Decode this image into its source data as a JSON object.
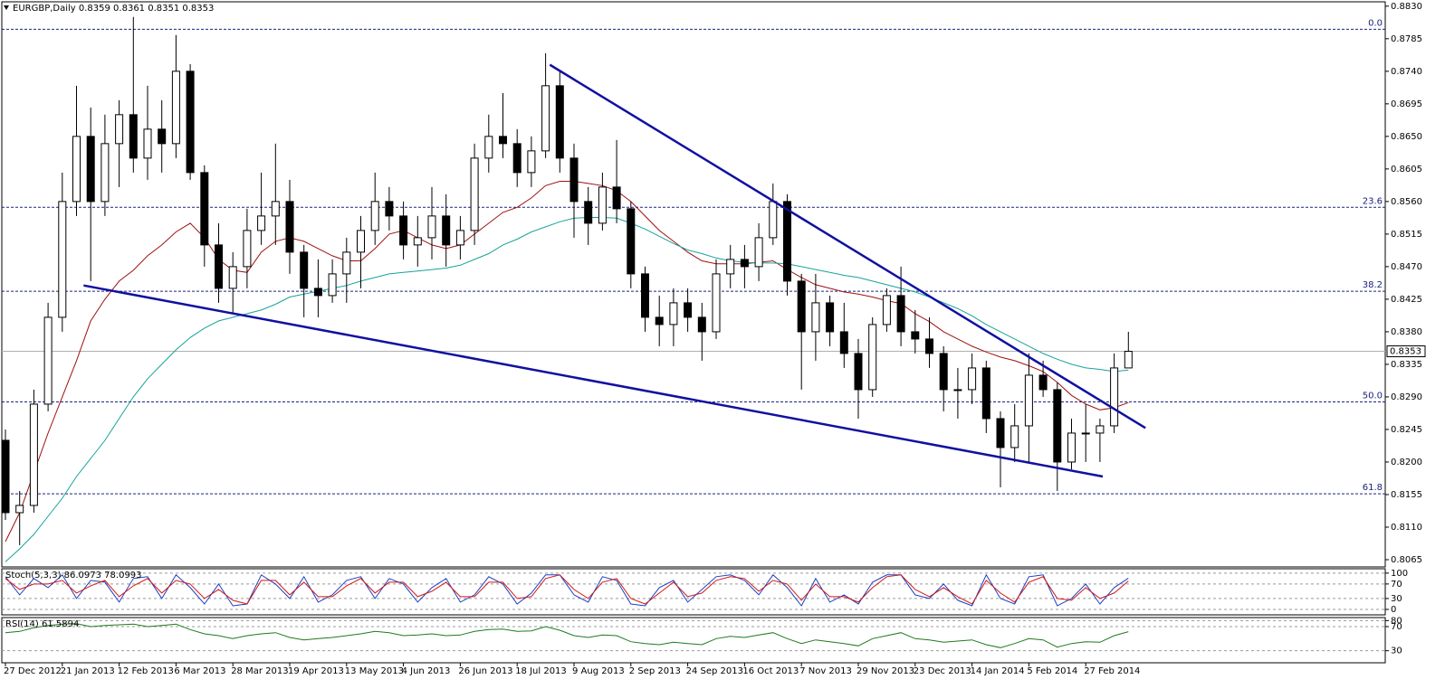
{
  "chart_data": [
    {
      "type": "candlestick",
      "title": "EURGBP,Daily 0.8359 0.8361 0.8351 0.8353",
      "categories": [
        "27 Dec 2012",
        null,
        null,
        null,
        "21 Jan 2013",
        null,
        null,
        null,
        "12 Feb 2013",
        null,
        null,
        null,
        "6 Mar 2013",
        null,
        null,
        null,
        "28 Mar 2013",
        null,
        null,
        null,
        "19 Apr 2013",
        null,
        null,
        null,
        "13 May 2013",
        null,
        null,
        null,
        "4 Jun 2013",
        null,
        null,
        null,
        "26 Jun 2013",
        null,
        null,
        null,
        "18 Jul 2013",
        null,
        null,
        null,
        "9 Aug 2013",
        null,
        null,
        null,
        "2 Sep 2013",
        null,
        null,
        null,
        "24 Sep 2013",
        null,
        null,
        null,
        "16 Oct 2013",
        null,
        null,
        null,
        "7 Nov 2013",
        null,
        null,
        null,
        "29 Nov 2013",
        null,
        null,
        null,
        "23 Dec 2013",
        null,
        null,
        null,
        "14 Jan 2014",
        null,
        null,
        null,
        "5 Feb 2014",
        null,
        null,
        null,
        "27 Feb 2014",
        null,
        null,
        null
      ],
      "open": [
        0.823,
        0.813,
        0.814,
        0.828,
        0.84,
        0.856,
        0.865,
        0.856,
        0.864,
        0.868,
        0.862,
        0.866,
        0.864,
        0.874,
        0.86,
        0.85,
        0.844,
        0.847,
        0.852,
        0.854,
        0.856,
        0.849,
        0.844,
        0.843,
        0.846,
        0.849,
        0.852,
        0.856,
        0.854,
        0.85,
        0.851,
        0.854,
        0.85,
        0.852,
        0.862,
        0.865,
        0.864,
        0.86,
        0.863,
        0.872,
        0.862,
        0.856,
        0.853,
        0.858,
        0.855,
        0.846,
        0.84,
        0.839,
        0.842,
        0.84,
        0.838,
        0.846,
        0.848,
        0.847,
        0.851,
        0.856,
        0.845,
        0.838,
        0.842,
        0.838,
        0.835,
        0.83,
        0.839,
        0.843,
        0.838,
        0.837,
        0.835,
        0.83,
        0.83,
        0.833,
        0.826,
        0.822,
        0.825,
        0.832,
        0.83,
        0.82,
        0.824,
        0.824,
        0.825,
        0.833
      ],
      "high": [
        0.8245,
        0.816,
        0.83,
        0.842,
        0.86,
        0.872,
        0.869,
        0.868,
        0.87,
        0.8815,
        0.872,
        0.87,
        0.879,
        0.875,
        0.861,
        0.853,
        0.849,
        0.855,
        0.86,
        0.864,
        0.859,
        0.85,
        0.848,
        0.848,
        0.851,
        0.854,
        0.86,
        0.858,
        0.856,
        0.854,
        0.858,
        0.857,
        0.854,
        0.864,
        0.868,
        0.871,
        0.866,
        0.865,
        0.8765,
        0.874,
        0.864,
        0.858,
        0.86,
        0.8645,
        0.856,
        0.847,
        0.843,
        0.844,
        0.844,
        0.842,
        0.848,
        0.85,
        0.85,
        0.853,
        0.8585,
        0.857,
        0.846,
        0.846,
        0.843,
        0.842,
        0.837,
        0.84,
        0.844,
        0.847,
        0.841,
        0.84,
        0.836,
        0.833,
        0.835,
        0.834,
        0.827,
        0.828,
        0.835,
        0.834,
        0.831,
        0.826,
        0.828,
        0.826,
        0.835,
        0.838
      ],
      "low": [
        0.812,
        0.8085,
        0.813,
        0.827,
        0.838,
        0.854,
        0.845,
        0.854,
        0.858,
        0.86,
        0.859,
        0.86,
        0.862,
        0.859,
        0.847,
        0.842,
        0.8405,
        0.844,
        0.85,
        0.85,
        0.846,
        0.84,
        0.84,
        0.842,
        0.842,
        0.844,
        0.85,
        0.852,
        0.848,
        0.847,
        0.848,
        0.847,
        0.848,
        0.85,
        0.86,
        0.862,
        0.858,
        0.858,
        0.862,
        0.86,
        0.851,
        0.85,
        0.852,
        0.853,
        0.844,
        0.838,
        0.836,
        0.836,
        0.838,
        0.834,
        0.837,
        0.844,
        0.844,
        0.845,
        0.85,
        0.843,
        0.83,
        0.834,
        0.836,
        0.833,
        0.826,
        0.829,
        0.838,
        0.836,
        0.835,
        0.833,
        0.827,
        0.826,
        0.828,
        0.824,
        0.8165,
        0.82,
        0.82,
        0.829,
        0.816,
        0.819,
        0.82,
        0.82,
        0.824,
        0.833
      ],
      "close": [
        0.813,
        0.814,
        0.828,
        0.84,
        0.856,
        0.865,
        0.856,
        0.864,
        0.868,
        0.862,
        0.866,
        0.864,
        0.874,
        0.86,
        0.85,
        0.844,
        0.847,
        0.852,
        0.854,
        0.856,
        0.849,
        0.844,
        0.843,
        0.846,
        0.849,
        0.852,
        0.856,
        0.854,
        0.85,
        0.851,
        0.854,
        0.85,
        0.852,
        0.862,
        0.865,
        0.864,
        0.86,
        0.863,
        0.872,
        0.862,
        0.856,
        0.853,
        0.858,
        0.855,
        0.846,
        0.84,
        0.839,
        0.842,
        0.84,
        0.838,
        0.846,
        0.848,
        0.847,
        0.851,
        0.856,
        0.845,
        0.838,
        0.842,
        0.838,
        0.835,
        0.83,
        0.839,
        0.843,
        0.838,
        0.837,
        0.835,
        0.83,
        0.83,
        0.833,
        0.826,
        0.822,
        0.825,
        0.832,
        0.83,
        0.82,
        0.824,
        0.824,
        0.825,
        0.833,
        0.8353
      ],
      "lines": [
        {
          "color": "#a01010",
          "values": [
            0.809,
            0.813,
            0.8185,
            0.824,
            0.829,
            0.834,
            0.8395,
            0.8425,
            0.845,
            0.8465,
            0.8485,
            0.85,
            0.8518,
            0.853,
            0.851,
            0.848,
            0.8465,
            0.8462,
            0.849,
            0.8505,
            0.851,
            0.8505,
            0.8495,
            0.8485,
            0.8478,
            0.8478,
            0.8495,
            0.8515,
            0.852,
            0.851,
            0.85,
            0.8495,
            0.85,
            0.8515,
            0.853,
            0.8545,
            0.8552,
            0.8565,
            0.8582,
            0.8588,
            0.8588,
            0.8585,
            0.8582,
            0.8575,
            0.856,
            0.854,
            0.852,
            0.8505,
            0.849,
            0.8478,
            0.8474,
            0.8474,
            0.8474,
            0.8476,
            0.8478,
            0.8466,
            0.8455,
            0.8445,
            0.844,
            0.8435,
            0.8432,
            0.8428,
            0.8423,
            0.8419,
            0.8405,
            0.8394,
            0.838,
            0.837,
            0.836,
            0.8352,
            0.8345,
            0.834,
            0.8333,
            0.8325,
            0.831,
            0.8292,
            0.828,
            0.8272,
            0.8275,
            0.8282
          ]
        },
        {
          "color": "#17a39a",
          "values": [
            0.8062,
            0.808,
            0.81,
            0.8125,
            0.815,
            0.818,
            0.8205,
            0.823,
            0.826,
            0.829,
            0.8315,
            0.8335,
            0.8355,
            0.8372,
            0.8385,
            0.8395,
            0.84,
            0.8405,
            0.841,
            0.8418,
            0.8428,
            0.8432,
            0.8436,
            0.844,
            0.8444,
            0.845,
            0.8455,
            0.846,
            0.8462,
            0.8464,
            0.8466,
            0.8468,
            0.8472,
            0.848,
            0.8488,
            0.85,
            0.8508,
            0.8518,
            0.8525,
            0.8532,
            0.8537,
            0.8538,
            0.8538,
            0.8537,
            0.853,
            0.8522,
            0.8512,
            0.8502,
            0.8493,
            0.8488,
            0.8482,
            0.8478,
            0.8476,
            0.8475,
            0.8475,
            0.8474,
            0.847,
            0.8466,
            0.8462,
            0.8458,
            0.8455,
            0.845,
            0.8445,
            0.844,
            0.8435,
            0.8428,
            0.842,
            0.8412,
            0.8402,
            0.839,
            0.838,
            0.837,
            0.836,
            0.835,
            0.8342,
            0.8335,
            0.833,
            0.8328,
            0.8325,
            0.8327
          ]
        }
      ],
      "ylim": [
        0.8055,
        0.8836
      ],
      "yticks": [
        0.8065,
        {
          "value": 0.811,
          "label": "0.8110"
        },
        0.8155,
        {
          "value": 0.82,
          "label": "0.8200"
        },
        0.8245,
        {
          "value": 0.829,
          "label": "0.8290"
        },
        0.8335,
        {
          "value": 0.838,
          "label": "0.8380"
        },
        0.8425,
        {
          "value": 0.847,
          "label": "0.8470"
        },
        0.8515,
        {
          "value": 0.856,
          "label": "0.8560"
        },
        0.8605,
        {
          "value": 0.865,
          "label": "0.8650"
        },
        0.8695,
        {
          "value": 0.874,
          "label": "0.8740"
        },
        0.8785,
        {
          "value": 0.883,
          "label": "0.8830"
        }
      ],
      "fib_levels": [
        {
          "value": 0.8798,
          "label": "0.0"
        },
        {
          "value": 0.8552,
          "label": "23.6"
        },
        {
          "value": 0.8436,
          "label": "38.2"
        },
        {
          "value": 0.8283,
          "label": "50.0"
        },
        {
          "value": 0.8156,
          "label": "61.8"
        }
      ],
      "fib_color": "#1a237e",
      "last_price": 0.8353,
      "trendlines": [
        {
          "color": "#1010a0",
          "x": [
            38.3,
            80.2
          ],
          "y": [
            0.8749,
            0.8247
          ]
        },
        {
          "color": "#1010a0",
          "x": [
            5.5,
            77.2
          ],
          "y": [
            0.8444,
            0.818
          ]
        }
      ]
    },
    {
      "type": "line",
      "title": "Stoch(5,3,3) 86.0973 78.0993",
      "series": [
        {
          "color": "#1c3fc4",
          "values": [
            90,
            40,
            85,
            60,
            95,
            30,
            80,
            75,
            20,
            85,
            90,
            30,
            95,
            60,
            15,
            70,
            10,
            15,
            95,
            70,
            30,
            90,
            20,
            40,
            80,
            90,
            30,
            85,
            70,
            20,
            60,
            85,
            20,
            40,
            90,
            70,
            15,
            45,
            95,
            95,
            40,
            20,
            90,
            80,
            15,
            10,
            60,
            80,
            20,
            55,
            90,
            95,
            80,
            40,
            95,
            60,
            10,
            85,
            20,
            40,
            15,
            75,
            95,
            95,
            40,
            30,
            70,
            25,
            10,
            95,
            30,
            15,
            90,
            95,
            10,
            30,
            70,
            15,
            60,
            86.0973
          ]
        },
        {
          "color": "#d01818",
          "values": [
            85,
            55,
            70,
            70,
            80,
            45,
            65,
            80,
            35,
            65,
            85,
            45,
            80,
            70,
            30,
            55,
            25,
            15,
            80,
            80,
            40,
            75,
            35,
            35,
            65,
            85,
            45,
            75,
            75,
            35,
            50,
            75,
            35,
            35,
            75,
            75,
            30,
            35,
            85,
            95,
            55,
            30,
            75,
            85,
            30,
            15,
            45,
            75,
            35,
            45,
            80,
            90,
            85,
            50,
            80,
            70,
            25,
            70,
            35,
            35,
            20,
            60,
            90,
            95,
            55,
            35,
            60,
            35,
            15,
            80,
            45,
            20,
            75,
            90,
            30,
            25,
            60,
            30,
            45,
            78.0993
          ]
        }
      ],
      "ylim": [
        -15,
        112
      ],
      "yticks": [
        100,
        70,
        30,
        0
      ],
      "grid": true
    },
    {
      "type": "line",
      "title": "RSI(14) 61.5894",
      "series": [
        {
          "color": "#1e7a1e",
          "values": [
            60,
            62,
            68,
            72,
            74,
            75,
            70,
            72,
            73,
            74,
            70,
            72,
            74,
            65,
            58,
            55,
            50,
            55,
            58,
            60,
            52,
            48,
            50,
            52,
            55,
            58,
            62,
            60,
            55,
            56,
            58,
            55,
            56,
            62,
            65,
            66,
            62,
            63,
            70,
            64,
            55,
            52,
            56,
            55,
            45,
            42,
            40,
            44,
            42,
            40,
            50,
            54,
            52,
            56,
            60,
            50,
            42,
            48,
            45,
            42,
            38,
            50,
            55,
            60,
            50,
            48,
            44,
            46,
            48,
            40,
            35,
            42,
            50,
            48,
            36,
            42,
            45,
            44,
            55,
            61.5894
          ]
        }
      ],
      "ylim": [
        10,
        85
      ],
      "yticks": [
        80,
        70,
        30
      ],
      "grid": true
    }
  ]
}
